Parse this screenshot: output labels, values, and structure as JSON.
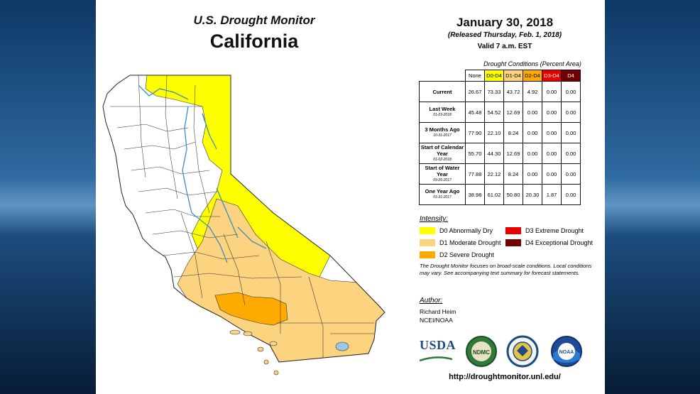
{
  "header": {
    "title_line1": "U.S. Drought Monitor",
    "title_line2": "California"
  },
  "release": {
    "date": "January 30, 2018",
    "released": "(Released Thursday, Feb. 1, 2018)",
    "valid": "Valid 7 a.m. EST"
  },
  "table": {
    "caption": "Drought Conditions (Percent Area)",
    "columns": [
      "None",
      "D0-D4",
      "D1-D4",
      "D2-D4",
      "D3-D4",
      "D4"
    ],
    "column_colors": [
      "#ffffff",
      "#ffff00",
      "#fcd37f",
      "#ffaa00",
      "#e60000",
      "#730000"
    ],
    "rows": [
      {
        "label": "Current",
        "sub": "",
        "values": [
          "26.67",
          "73.33",
          "43.72",
          "4.92",
          "0.00",
          "0.00"
        ]
      },
      {
        "label": "Last Week",
        "sub": "01-23-2018",
        "values": [
          "45.48",
          "54.52",
          "12.69",
          "0.00",
          "0.00",
          "0.00"
        ]
      },
      {
        "label": "3 Months Ago",
        "sub": "10-31-2017",
        "values": [
          "77.90",
          "22.10",
          "8.24",
          "0.00",
          "0.00",
          "0.00"
        ]
      },
      {
        "label": "Start of Calendar Year",
        "sub": "01-02-2018",
        "values": [
          "55.70",
          "44.30",
          "12.69",
          "0.00",
          "0.00",
          "0.00"
        ]
      },
      {
        "label": "Start of Water Year",
        "sub": "09-26-2017",
        "values": [
          "77.88",
          "22.12",
          "8.24",
          "0.00",
          "0.00",
          "0.00"
        ]
      },
      {
        "label": "One Year Ago",
        "sub": "01-31-2017",
        "values": [
          "38.98",
          "61.02",
          "50.80",
          "20.30",
          "1.87",
          "0.00"
        ]
      }
    ]
  },
  "intensity": {
    "heading": "Intensity:",
    "items": [
      {
        "label": "D0 Abnormally Dry",
        "color": "#ffff00"
      },
      {
        "label": "D1 Moderate Drought",
        "color": "#fcd37f"
      },
      {
        "label": "D2 Severe Drought",
        "color": "#ffaa00"
      },
      {
        "label": "D3 Extreme Drought",
        "color": "#e60000"
      },
      {
        "label": "D4 Exceptional Drought",
        "color": "#730000"
      }
    ]
  },
  "note": "The Drought Monitor focuses on broad-scale conditions. Local conditions may vary. See accompanying text summary for forecast statements.",
  "author": {
    "heading": "Author:",
    "name": "Richard Heim",
    "org": "NCEI/NOAA"
  },
  "logos": {
    "usda": "USDA",
    "ndmc": "NDMC",
    "noaa": "NOAA"
  },
  "url": "http://droughtmonitor.unl.edu/"
}
